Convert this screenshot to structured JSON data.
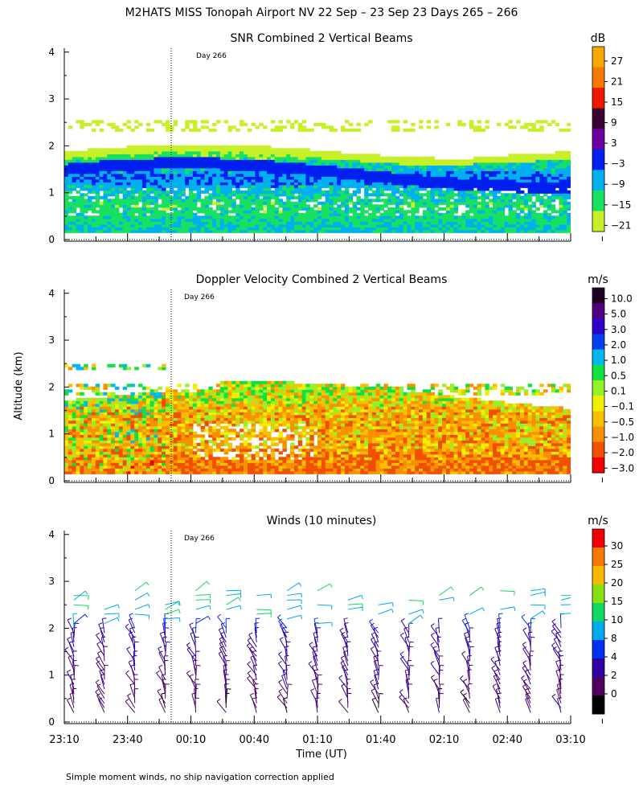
{
  "figure": {
    "title": "M2HATS MISS Tonopah Airport NV  22 Sep – 23 Sep 23 Days 265 – 266",
    "ylabel": "Altitude (km)",
    "xlabel": "Time (UT)",
    "footnote": "Simple moment winds, no ship navigation correction applied",
    "day_marker": "Day 266",
    "x_ticks": [
      "23:10",
      "23:40",
      "00:10",
      "00:40",
      "01:10",
      "01:40",
      "02:10",
      "02:40",
      "03:10"
    ],
    "y_ticks": [
      "0",
      "1",
      "2",
      "3",
      "4"
    ]
  },
  "chart_data": [
    {
      "type": "heatmap",
      "title": "SNR Combined 2 Vertical Beams",
      "units": "dB",
      "ylim": [
        0,
        4
      ],
      "colorbar_labels": [
        "27",
        "21",
        "15",
        "9",
        "3",
        "−3",
        "−9",
        "−15",
        "−21"
      ],
      "colorbar_colors": [
        "#f7a800",
        "#f97a00",
        "#f01800",
        "#3a0030",
        "#6a00a0",
        "#0020f0",
        "#00b0f0",
        "#18e060",
        "#c8f028"
      ],
      "profile": [
        {
          "alt_km": 0.2,
          "value": -9
        },
        {
          "alt_km": 0.7,
          "value": -12
        },
        {
          "alt_km": 1.3,
          "value": -3
        },
        {
          "alt_km": 1.8,
          "value": -15
        },
        {
          "alt_km": 2.4,
          "value": -21
        }
      ]
    },
    {
      "type": "heatmap",
      "title": "Doppler Velocity Combined 2 Vertical Beams",
      "units": "m/s",
      "ylim": [
        0,
        4
      ],
      "colorbar_labels": [
        "10.0",
        "5.0",
        "3.0",
        "2.0",
        "1.0",
        "0.5",
        "0.1",
        "−0.1",
        "−0.5",
        "−1.0",
        "−2.0",
        "−3.0"
      ],
      "colorbar_colors": [
        "#200020",
        "#500080",
        "#3000c8",
        "#0040f0",
        "#00b8f0",
        "#10e040",
        "#98f028",
        "#f0f000",
        "#f8c000",
        "#f89000",
        "#f05000",
        "#f00000"
      ],
      "profile": [
        {
          "alt_km": 0.3,
          "value": -1.0
        },
        {
          "alt_km": 0.8,
          "value": -0.5
        },
        {
          "alt_km": 1.4,
          "value": -0.5
        },
        {
          "alt_km": 1.8,
          "value": 0.1
        },
        {
          "alt_km": 2.4,
          "value": 0.1
        }
      ]
    },
    {
      "type": "scatter",
      "title": "Winds (10 minutes)",
      "units": "m/s",
      "ylim": [
        0,
        4
      ],
      "colorbar_labels": [
        "30",
        "25",
        "20",
        "15",
        "10",
        "8",
        "4",
        "2",
        "0"
      ],
      "colorbar_colors": [
        "#f00000",
        "#f87800",
        "#f8b800",
        "#88e010",
        "#10d860",
        "#00a8f0",
        "#0030f0",
        "#3000a0",
        "#500060",
        "#000000"
      ],
      "profile": [
        {
          "alt_km": 0.3,
          "speed_ms": 3
        },
        {
          "alt_km": 0.8,
          "speed_ms": 4
        },
        {
          "alt_km": 1.3,
          "speed_ms": 5
        },
        {
          "alt_km": 1.8,
          "speed_ms": 6
        },
        {
          "alt_km": 2.3,
          "speed_ms": 14
        },
        {
          "alt_km": 2.7,
          "speed_ms": 15
        }
      ]
    }
  ]
}
